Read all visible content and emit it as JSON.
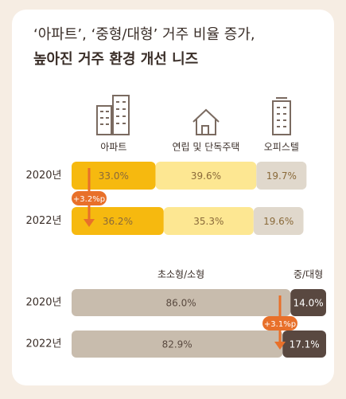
{
  "title": [
    "‘아파트’, ‘중형/대형’ 거주 비율 증가,",
    "높아진 거주 환경 개선 니즈"
  ],
  "chart_data": [
    {
      "type": "bar",
      "orientation": "horizontal",
      "stacked": true,
      "categories": [
        "2020년",
        "2022년"
      ],
      "series": [
        {
          "name": "아파트",
          "color": "#f6b90f",
          "values": [
            33.0,
            36.2
          ],
          "value_labels": [
            "33.0%",
            "36.2%"
          ]
        },
        {
          "name": "연립 및 단독주택",
          "color": "#fde792",
          "values": [
            39.6,
            35.3
          ],
          "value_labels": [
            "39.6%",
            "35.3%"
          ]
        },
        {
          "name": "오피스텔",
          "color": "#e0d8cc",
          "values": [
            19.7,
            19.6
          ],
          "value_labels": [
            "19.7%",
            "19.6%"
          ]
        }
      ],
      "xlim": [
        0,
        100
      ],
      "annotation": "+3.2%p"
    },
    {
      "type": "bar",
      "orientation": "horizontal",
      "stacked": true,
      "categories": [
        "2020년",
        "2022년"
      ],
      "series": [
        {
          "name": "초소형/소형",
          "color": "#c8bcad",
          "values": [
            86.0,
            82.9
          ],
          "value_labels": [
            "86.0%",
            "82.9%"
          ]
        },
        {
          "name": "중/대형",
          "color": "#594840",
          "values": [
            14.0,
            17.1
          ],
          "value_labels": [
            "14.0%",
            "17.1%"
          ]
        }
      ],
      "xlim": [
        0,
        100
      ],
      "annotation": "+3.1%p"
    }
  ]
}
